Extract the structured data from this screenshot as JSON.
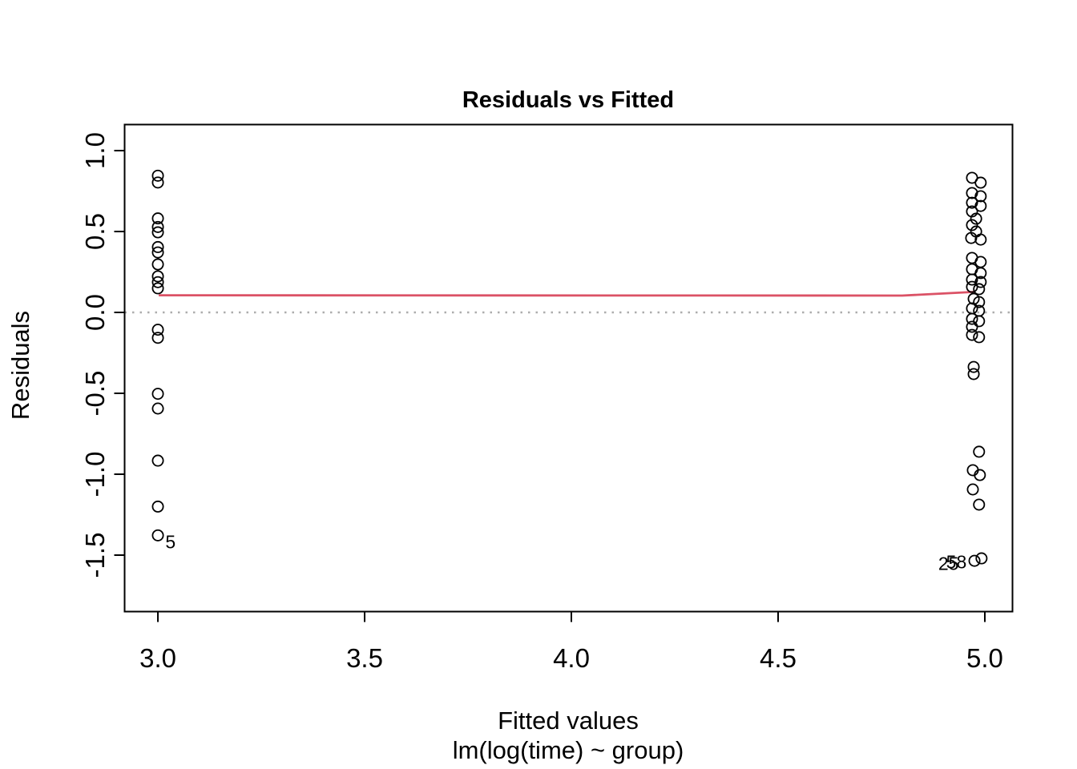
{
  "chart_data": {
    "type": "scatter",
    "title": "Residuals vs Fitted",
    "xlabel": "Fitted values",
    "xlabel_line2": "lm(log(time) ~ group)",
    "ylabel": "Residuals",
    "xlim": [
      2.9195,
      5.0669
    ],
    "ylim": [
      -1.849,
      1.161
    ],
    "grid": false,
    "legend": "none",
    "x_ticks": {
      "values": [
        3.0,
        3.5,
        4.0,
        4.5,
        5.0
      ],
      "labels": [
        "3.0",
        "3.5",
        "4.0",
        "4.5",
        "5.0"
      ]
    },
    "y_ticks": {
      "values": [
        1.0,
        0.5,
        0.0,
        -0.5,
        -1.0,
        -1.5
      ],
      "labels": [
        "1.0",
        "0.5",
        "0.0",
        "-0.5",
        "-1.0",
        "-1.5"
      ]
    },
    "zero_line": {
      "y": 0.0,
      "style": "dotted",
      "color": "#ADADAD"
    },
    "smoother_line": {
      "color": "#DB5266",
      "points": [
        [
          3.002,
          0.106
        ],
        [
          4.8,
          0.104
        ],
        [
          4.975,
          0.127
        ]
      ]
    },
    "series": [
      {
        "name": "group fitted 3.0 residuals",
        "points": [
          [
            3.0,
            0.845
          ],
          [
            3.0,
            0.803
          ],
          [
            3.0,
            0.581
          ],
          [
            3.0,
            0.528
          ],
          [
            3.0,
            0.495
          ],
          [
            3.0,
            0.404
          ],
          [
            3.0,
            0.371
          ],
          [
            3.0,
            0.297
          ],
          [
            3.0,
            0.223
          ],
          [
            3.0,
            0.187
          ],
          [
            3.0,
            0.149
          ],
          [
            3.0,
            -0.107
          ],
          [
            3.0,
            -0.157
          ],
          [
            3.0,
            -0.503
          ],
          [
            3.0,
            -0.594
          ],
          [
            3.0,
            -0.916
          ],
          [
            3.0,
            -1.2
          ],
          [
            3.0,
            -1.378
          ]
        ]
      },
      {
        "name": "group fitted 5.0 residuals",
        "points": [
          [
            4.969,
            0.832
          ],
          [
            4.99,
            0.802
          ],
          [
            4.969,
            0.738
          ],
          [
            4.99,
            0.718
          ],
          [
            4.969,
            0.678
          ],
          [
            4.99,
            0.658
          ],
          [
            4.969,
            0.624
          ],
          [
            4.979,
            0.579
          ],
          [
            4.969,
            0.54
          ],
          [
            4.979,
            0.5
          ],
          [
            4.967,
            0.46
          ],
          [
            4.99,
            0.45
          ],
          [
            4.969,
            0.337
          ],
          [
            4.99,
            0.312
          ],
          [
            4.969,
            0.267
          ],
          [
            4.99,
            0.243
          ],
          [
            4.969,
            0.203
          ],
          [
            4.99,
            0.188
          ],
          [
            4.969,
            0.158
          ],
          [
            4.986,
            0.144
          ],
          [
            4.973,
            0.084
          ],
          [
            4.986,
            0.064
          ],
          [
            4.969,
            0.025
          ],
          [
            4.986,
            0.01
          ],
          [
            4.969,
            -0.04
          ],
          [
            4.986,
            -0.054
          ],
          [
            4.969,
            -0.089
          ],
          [
            4.969,
            -0.139
          ],
          [
            4.986,
            -0.153
          ],
          [
            4.973,
            -0.337
          ],
          [
            4.973,
            -0.381
          ],
          [
            4.986,
            -0.861
          ],
          [
            4.971,
            -0.975
          ],
          [
            4.988,
            -1.005
          ],
          [
            4.971,
            -1.094
          ],
          [
            4.986,
            -1.188
          ],
          [
            4.975,
            -1.535
          ],
          [
            4.992,
            -1.52
          ]
        ]
      }
    ],
    "point_labels": [
      {
        "text": "5",
        "x": 3.018,
        "y": -1.418,
        "anchor": "start"
      },
      {
        "text": "25",
        "x": 4.937,
        "y": -1.552,
        "anchor": "end"
      },
      {
        "text": "58",
        "x": 4.956,
        "y": -1.542,
        "anchor": "end"
      }
    ]
  },
  "colors": {
    "point_stroke": "#000000",
    "axis": "#000000",
    "smoother": "#DB5266",
    "zero_line": "#ADADAD",
    "background": "#ffffff"
  }
}
